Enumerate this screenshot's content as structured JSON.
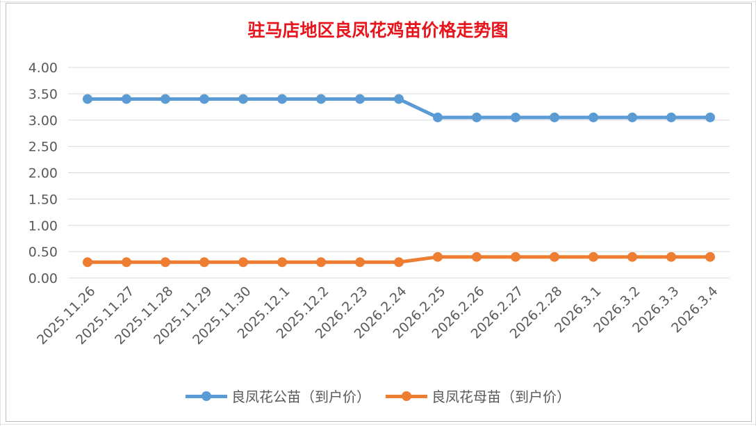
{
  "chart_data": {
    "type": "line",
    "title": "驻马店地区良凤花鸡苗价格走势图",
    "categories": [
      "2025.11.26",
      "2025.11.27",
      "2025.11.28",
      "2025.11.29",
      "2025.11.30",
      "2025.12.1",
      "2025.12.2",
      "2026.2.23",
      "2026.2.24",
      "2026.2.25",
      "2026.2.26",
      "2026.2.27",
      "2026.2.28",
      "2026.3.1",
      "2026.3.2",
      "2026.3.3",
      "2026.3.4"
    ],
    "yticks": [
      "0.00",
      "0.50",
      "1.00",
      "1.50",
      "2.00",
      "2.50",
      "3.00",
      "3.50",
      "4.00"
    ],
    "ylim": [
      0,
      4
    ],
    "grid": true,
    "legend_position": "bottom",
    "series": [
      {
        "name": "良凤花公苗（到户价）",
        "color": "#5b9bd5",
        "values": [
          3.4,
          3.4,
          3.4,
          3.4,
          3.4,
          3.4,
          3.4,
          3.4,
          3.4,
          3.05,
          3.05,
          3.05,
          3.05,
          3.05,
          3.05,
          3.05,
          3.05
        ]
      },
      {
        "name": "良凤花母苗（到户价）",
        "color": "#ed7d31",
        "values": [
          0.3,
          0.3,
          0.3,
          0.3,
          0.3,
          0.3,
          0.3,
          0.3,
          0.3,
          0.4,
          0.4,
          0.4,
          0.4,
          0.4,
          0.4,
          0.4,
          0.4
        ]
      }
    ]
  }
}
